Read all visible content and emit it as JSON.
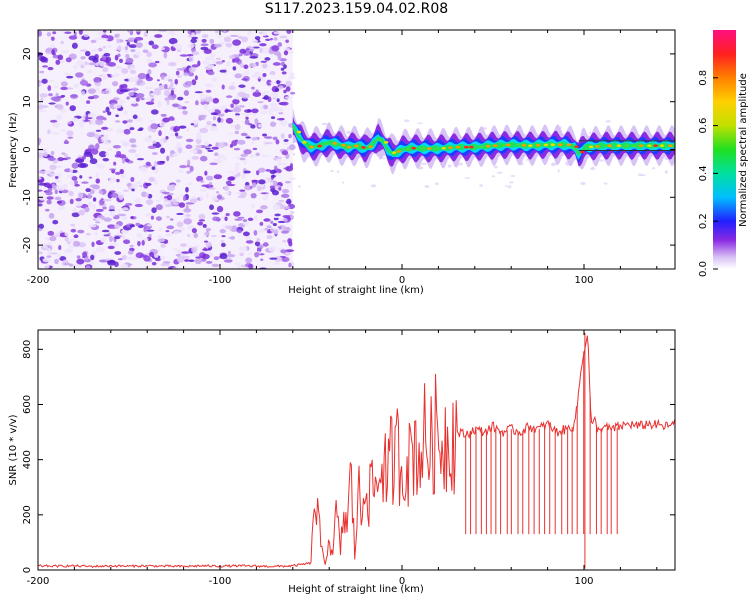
{
  "title": "S117.2023.159.04.02.R08",
  "colors": {
    "snr_line": "#e8312f",
    "axis": "#000000"
  },
  "chart_data": [
    {
      "type": "heatmap",
      "title": "S117.2023.159.04.02.R08",
      "xlabel": "Height of straight line (km)",
      "ylabel": "Frequency (Hz)",
      "xlim": [
        -200,
        150
      ],
      "ylim": [
        -25,
        25
      ],
      "x_ticks": [
        -200,
        -100,
        0,
        100
      ],
      "y_ticks": [
        -20,
        -10,
        0,
        10,
        20
      ],
      "x_tick_labels": [
        "-200",
        "-100",
        "0",
        "100"
      ],
      "y_tick_labels": [
        "-20",
        "-10",
        "0",
        "10",
        "20"
      ],
      "colorbar": {
        "label": "Normalized spectral amplitude",
        "range": [
          0,
          1
        ],
        "ticks": [
          0.0,
          0.2,
          0.4,
          0.6,
          0.8
        ],
        "tick_labels": [
          "0.0",
          "0.2",
          "0.4",
          "0.6",
          "0.8"
        ],
        "colormap": "rainbow"
      },
      "noise_region_x": [
        -200,
        -60
      ],
      "signal_trace": {
        "x": [
          -60,
          -57,
          -54,
          -50,
          -45,
          -40,
          -35,
          -30,
          -25,
          -20,
          -17,
          -15,
          -13,
          -10,
          -8,
          -5,
          0,
          5,
          10,
          20,
          30,
          40,
          50,
          60,
          70,
          80,
          90,
          95,
          97,
          100,
          110,
          120,
          130,
          140,
          150
        ],
        "frequency": [
          5,
          3,
          1.5,
          0.5,
          0.8,
          1.5,
          1.0,
          0.5,
          0.8,
          0.2,
          0.8,
          1.5,
          2.5,
          1.5,
          0,
          -1,
          0,
          0.3,
          0.2,
          0.2,
          0.5,
          0.5,
          0.8,
          1.0,
          0.8,
          1.0,
          1.0,
          0.5,
          -1,
          0.5,
          0.8,
          0.8,
          0.8,
          0.8,
          0.8
        ]
      }
    },
    {
      "type": "line",
      "xlabel": "Height of straight line (km)",
      "ylabel": "SNR (10 * v/v)",
      "xlim": [
        -200,
        150
      ],
      "ylim": [
        0,
        870
      ],
      "x_ticks": [
        -200,
        -100,
        0,
        100
      ],
      "y_ticks": [
        0,
        200,
        400,
        600,
        800
      ],
      "x_tick_labels": [
        "-200",
        "-100",
        "0",
        "100"
      ],
      "y_tick_labels": [
        "0",
        "200",
        "400",
        "600",
        "800"
      ],
      "series": [
        {
          "x": [
            -200,
            -190,
            -180,
            -170,
            -160,
            -150,
            -140,
            -130,
            -120,
            -110,
            -100,
            -90,
            -80,
            -70,
            -60,
            -55,
            -50,
            -48,
            -46,
            -44,
            -42,
            -40,
            -38,
            -36,
            -34,
            -32,
            -30,
            -28,
            -26,
            -24,
            -22,
            -20,
            -18,
            -16,
            -14,
            -12,
            -10,
            -8,
            -6,
            -4,
            -2,
            0,
            2,
            4,
            6,
            8,
            10,
            12,
            14,
            16,
            18,
            20,
            25,
            30,
            35,
            40,
            45,
            50,
            55,
            60,
            65,
            70,
            75,
            80,
            85,
            90,
            94,
            96,
            98,
            100,
            102,
            104,
            106,
            108,
            110,
            115,
            120,
            125,
            130,
            135,
            140,
            145,
            150
          ],
          "y": [
            15,
            14,
            15,
            13,
            15,
            14,
            15,
            14,
            13,
            15,
            14,
            15,
            14,
            13,
            15,
            20,
            25,
            270,
            180,
            60,
            30,
            120,
            40,
            230,
            60,
            200,
            160,
            350,
            50,
            300,
            170,
            400,
            250,
            330,
            280,
            370,
            420,
            300,
            410,
            380,
            450,
            350,
            430,
            380,
            470,
            440,
            420,
            480,
            460,
            440,
            500,
            470,
            480,
            500,
            490,
            510,
            500,
            520,
            500,
            510,
            500,
            520,
            510,
            530,
            500,
            510,
            520,
            580,
            700,
            800,
            860,
            520,
            540,
            500,
            520,
            510,
            520,
            530,
            520,
            530,
            525,
            520,
            530
          ]
        }
      ]
    }
  ]
}
